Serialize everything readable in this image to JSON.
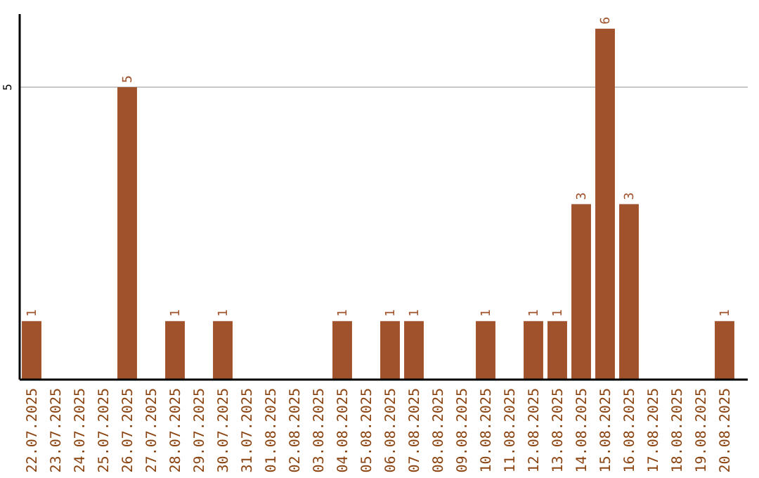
{
  "chart_data": {
    "type": "bar",
    "categories": [
      "22.07.2025",
      "23.07.2025",
      "24.07.2025",
      "25.07.2025",
      "26.07.2025",
      "27.07.2025",
      "28.07.2025",
      "29.07.2025",
      "30.07.2025",
      "31.07.2025",
      "01.08.2025",
      "02.08.2025",
      "03.08.2025",
      "04.08.2025",
      "05.08.2025",
      "06.08.2025",
      "07.08.2025",
      "08.08.2025",
      "09.08.2025",
      "10.08.2025",
      "11.08.2025",
      "12.08.2025",
      "13.08.2025",
      "14.08.2025",
      "15.08.2025",
      "16.08.2025",
      "17.08.2025",
      "18.08.2025",
      "19.08.2025",
      "20.08.2025"
    ],
    "values": [
      1,
      0,
      0,
      0,
      5,
      0,
      1,
      0,
      1,
      0,
      0,
      0,
      0,
      1,
      0,
      1,
      1,
      0,
      0,
      1,
      0,
      1,
      1,
      3,
      6,
      3,
      0,
      0,
      0,
      1
    ],
    "value_labels": [
      "1",
      null,
      null,
      null,
      "5",
      null,
      "1",
      null,
      "1",
      null,
      null,
      null,
      null,
      "1",
      null,
      "1",
      "1",
      null,
      null,
      "1",
      null,
      "1",
      "1",
      "3",
      "6",
      "3",
      null,
      null,
      null,
      "1"
    ],
    "color": "#a0522d",
    "ylim": [
      0,
      6.25
    ],
    "yticks": [
      5
    ],
    "grid": "y"
  }
}
